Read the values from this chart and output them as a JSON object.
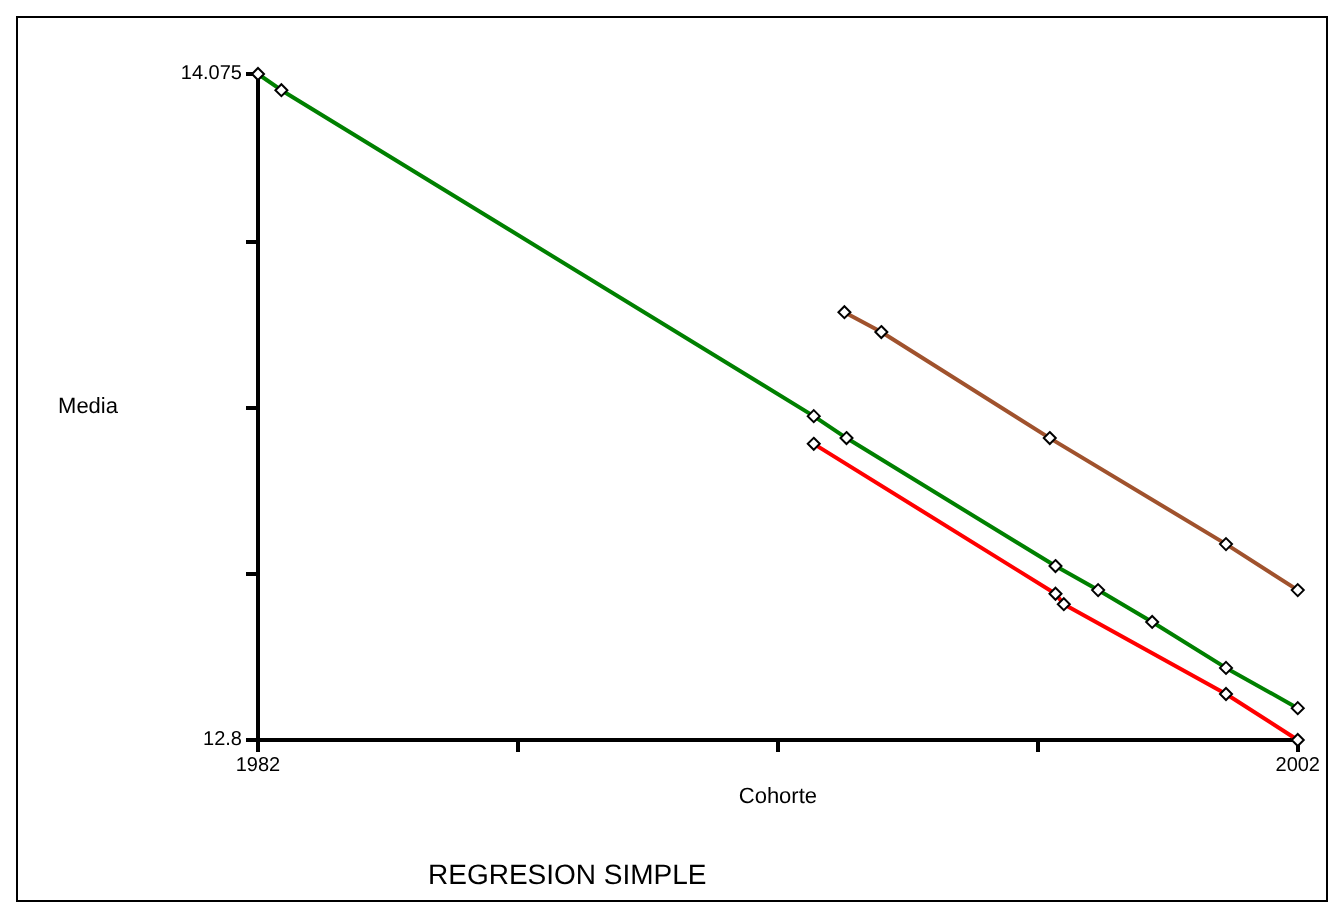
{
  "chart_data": {
    "type": "line",
    "xlabel": "Cohorte",
    "ylabel": "Media",
    "annotations": [
      "REGRESION SIMPLE"
    ],
    "xlim": [
      1982,
      2002
    ],
    "xticks": [
      1982,
      {
        "value": 1987,
        "label": null
      },
      {
        "value": 1992,
        "label": null
      },
      {
        "value": 1997,
        "label": null
      },
      2002
    ],
    "ylim": [
      12.8,
      14.075
    ],
    "yticks": [
      12.8,
      {
        "value": 13.11875,
        "label": null
      },
      {
        "value": 13.4375,
        "label": null
      },
      {
        "value": 13.75625,
        "label": null
      },
      14.075
    ],
    "grid": false,
    "marker": "diamond",
    "line_style": "solid",
    "series": [
      {
        "color": "#008000",
        "x": [
          1982,
          1982.45,
          1992.69,
          1993.32,
          1997.34,
          1998.16,
          1999.2,
          2000.62,
          2002
        ],
        "values": [
          14.075,
          14.044,
          13.42,
          13.378,
          13.133,
          13.087,
          13.026,
          12.938,
          12.861
        ]
      },
      {
        "color": "#ff0000",
        "x": [
          1992.69,
          1997.34,
          1997.5,
          2000.62,
          2002
        ],
        "values": [
          13.367,
          13.08,
          13.06,
          12.888,
          12.8
        ]
      },
      {
        "color": "#a0522d",
        "x": [
          1993.28,
          1993.99,
          1997.23,
          2000.62,
          2002
        ],
        "values": [
          13.619,
          13.581,
          13.378,
          13.175,
          13.087
        ]
      }
    ]
  }
}
